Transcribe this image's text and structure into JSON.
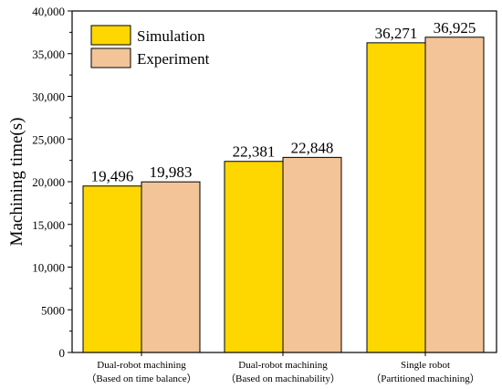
{
  "chart_data": {
    "type": "bar",
    "ylabel": "Machining time(s)",
    "ylim": [
      0,
      40000
    ],
    "yticks": [
      0,
      5000,
      10000,
      15000,
      20000,
      25000,
      30000,
      35000,
      40000
    ],
    "ytick_labels": [
      "0",
      "5000",
      "10,000",
      "15,000",
      "20,000",
      "25,000",
      "30,000",
      "35,000",
      "40,000"
    ],
    "categories": [
      [
        "Dual-robot machining",
        "（Based on time balance）"
      ],
      [
        "Dual-robot machining",
        "（Based on machinability）"
      ],
      [
        "Single robot",
        "（Partitioned machining）"
      ]
    ],
    "series": [
      {
        "name": "Simulation",
        "color": "#FFD700",
        "values": [
          19496,
          22381,
          36271
        ],
        "labels": [
          "19,496",
          "22,381",
          "36,271"
        ]
      },
      {
        "name": "Experiment",
        "color": "#F2C497",
        "values": [
          19983,
          22848,
          36925
        ],
        "labels": [
          "19,983",
          "22,848",
          "36,925"
        ]
      }
    ],
    "legend_position": "top-left",
    "grid": false
  }
}
